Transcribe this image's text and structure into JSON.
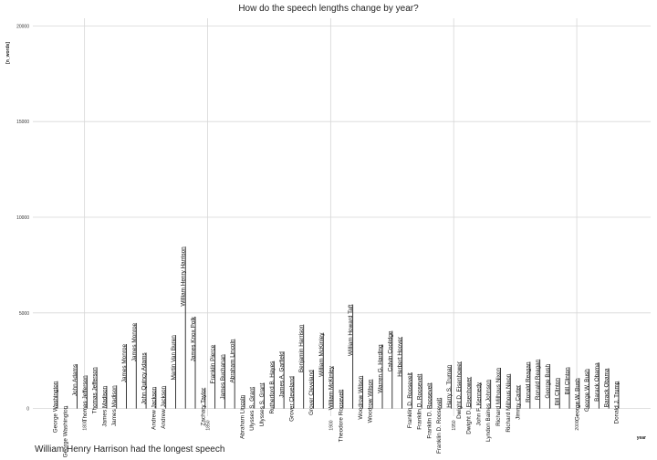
{
  "chart_data": {
    "type": "lollipop",
    "title": "How do the speech lengths change by year?",
    "xlabel": "year",
    "ylabel": "[n_words]",
    "xlim": [
      1779,
      2030
    ],
    "ylim": [
      -400,
      20400
    ],
    "x_ticks": [
      1800,
      1850,
      1900,
      1950,
      2000
    ],
    "y_ticks": [
      0,
      5000,
      10000,
      15000,
      20000
    ],
    "grid": true,
    "caption": "William Henry Harrison had the longest speech",
    "points": [
      {
        "president": "George Washington",
        "year": 1789,
        "words": 1430
      },
      {
        "president": "George Washington",
        "year": 1793,
        "words": 135
      },
      {
        "president": "John Adams",
        "year": 1797,
        "words": 2320
      },
      {
        "president": "Thomas Jefferson",
        "year": 1801,
        "words": 1730
      },
      {
        "president": "Thomas Jefferson",
        "year": 1805,
        "words": 2160
      },
      {
        "president": "James Madison",
        "year": 1809,
        "words": 1180
      },
      {
        "president": "James Madison",
        "year": 1813,
        "words": 1210
      },
      {
        "president": "James Monroe",
        "year": 1817,
        "words": 3370
      },
      {
        "president": "James Monroe",
        "year": 1821,
        "words": 4470
      },
      {
        "president": "John Quincy Adams",
        "year": 1825,
        "words": 2920
      },
      {
        "president": "Andrew Jackson",
        "year": 1829,
        "words": 1130
      },
      {
        "president": "Andrew Jackson",
        "year": 1833,
        "words": 1180
      },
      {
        "president": "Martin Van Buren",
        "year": 1837,
        "words": 3840
      },
      {
        "president": "William Henry Harrison",
        "year": 1841,
        "words": 8460
      },
      {
        "president": "James Knox Polk",
        "year": 1845,
        "words": 4800
      },
      {
        "president": "Zachary Taylor",
        "year": 1849,
        "words": 1090
      },
      {
        "president": "Franklin Pierce",
        "year": 1853,
        "words": 3330
      },
      {
        "president": "James Buchanan",
        "year": 1857,
        "words": 2830
      },
      {
        "president": "Abraham Lincoln",
        "year": 1861,
        "words": 3630
      },
      {
        "president": "Abraham Lincoln",
        "year": 1865,
        "words": 700
      },
      {
        "president": "Ulysses S. Grant",
        "year": 1869,
        "words": 1130
      },
      {
        "president": "Ulysses S. Grant",
        "year": 1873,
        "words": 1340
      },
      {
        "president": "Rutherford B. Hayes",
        "year": 1877,
        "words": 2480
      },
      {
        "president": "James A. Garfield",
        "year": 1881,
        "words": 2980
      },
      {
        "president": "Grover Cleveland",
        "year": 1885,
        "words": 1690
      },
      {
        "president": "Benjamin Harrison",
        "year": 1889,
        "words": 4390
      },
      {
        "president": "Grover Cleveland",
        "year": 1893,
        "words": 2020
      },
      {
        "president": "William McKinley",
        "year": 1897,
        "words": 3960
      },
      {
        "president": "William McKinley",
        "year": 1901,
        "words": 2220
      },
      {
        "president": "Theodore Roosevelt",
        "year": 1905,
        "words": 990
      },
      {
        "president": "William Howard Taft",
        "year": 1909,
        "words": 5440
      },
      {
        "president": "Woodrow Wilson",
        "year": 1913,
        "words": 1710
      },
      {
        "president": "Woodrow Wilson",
        "year": 1917,
        "words": 1530
      },
      {
        "president": "Warren G. Harding",
        "year": 1921,
        "words": 3350
      },
      {
        "president": "Calvin Coolidge",
        "year": 1925,
        "words": 4060
      },
      {
        "president": "Herbert Hoover",
        "year": 1929,
        "words": 3750
      },
      {
        "president": "Franklin D. Roosevelt",
        "year": 1933,
        "words": 1880
      },
      {
        "president": "Franklin D. Roosevelt",
        "year": 1937,
        "words": 1810
      },
      {
        "president": "Franklin D. Roosevelt",
        "year": 1941,
        "words": 1340
      },
      {
        "president": "Franklin D. Roosevelt",
        "year": 1945,
        "words": 560
      },
      {
        "president": "Harry S. Truman",
        "year": 1949,
        "words": 2280
      },
      {
        "president": "Dwight D. Eisenhower",
        "year": 1953,
        "words": 2460
      },
      {
        "president": "Dwight D. Eisenhower",
        "year": 1957,
        "words": 1660
      },
      {
        "president": "John F. Kennedy",
        "year": 1961,
        "words": 1370
      },
      {
        "president": "Lyndon Baines Johnson",
        "year": 1965,
        "words": 1510
      },
      {
        "president": "Richard Milhous Nixon",
        "year": 1969,
        "words": 2130
      },
      {
        "president": "Richard Milhous Nixon",
        "year": 1973,
        "words": 1810
      },
      {
        "president": "Jimmy Carter",
        "year": 1977,
        "words": 1230
      },
      {
        "president": "Ronald Reagan",
        "year": 1981,
        "words": 2440
      },
      {
        "president": "Ronald Reagan",
        "year": 1985,
        "words": 2570
      },
      {
        "president": "George Bush",
        "year": 1989,
        "words": 2320
      },
      {
        "president": "Bill Clinton",
        "year": 1993,
        "words": 1600
      },
      {
        "president": "Bill Clinton",
        "year": 1997,
        "words": 2160
      },
      {
        "president": "George W. Bush",
        "year": 2001,
        "words": 1590
      },
      {
        "president": "George W. Bush",
        "year": 2005,
        "words": 2070
      },
      {
        "president": "Barack Obama",
        "year": 2009,
        "words": 2400
      },
      {
        "president": "Barack Obama",
        "year": 2013,
        "words": 2100
      },
      {
        "president": "Donald J. Trump",
        "year": 2017,
        "words": 1430
      }
    ]
  }
}
